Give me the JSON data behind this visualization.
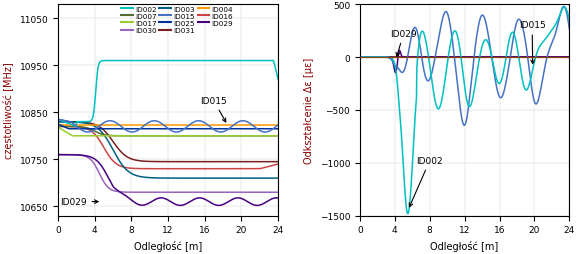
{
  "left_ylabel": "częstotliwość [MHz]",
  "left_xlabel": "Odległość [m]",
  "left_ylim": [
    10630,
    11080
  ],
  "left_xlim": [
    0,
    24
  ],
  "left_xticks": [
    0,
    4,
    8,
    12,
    16,
    20,
    24
  ],
  "left_yticks": [
    10650,
    10750,
    10850,
    10950,
    11050
  ],
  "right_ylabel": "Odkształcenie Δε [με]",
  "right_xlabel": "Odległość [m]",
  "right_ylim": [
    -1500,
    500
  ],
  "right_xlim": [
    0,
    24
  ],
  "right_xticks": [
    0,
    4,
    8,
    12,
    16,
    20,
    24
  ],
  "right_yticks": [
    -1500,
    -1000,
    -500,
    0,
    500
  ],
  "legend_entries": [
    {
      "label": "ID002",
      "color": "#00C0C0"
    },
    {
      "label": "ID007",
      "color": "#556B2F"
    },
    {
      "label": "ID017",
      "color": "#9ACD32"
    },
    {
      "label": "ID030",
      "color": "#9966BB"
    },
    {
      "label": "ID003",
      "color": "#006080"
    },
    {
      "label": "ID015",
      "color": "#4472C4"
    },
    {
      "label": "ID025",
      "color": "#003399"
    },
    {
      "label": "ID031",
      "color": "#7B2020"
    },
    {
      "label": "ID004",
      "color": "#FF9900"
    },
    {
      "label": "ID016",
      "color": "#CC4444"
    },
    {
      "label": "ID029",
      "color": "#4B0080"
    }
  ],
  "figsize": [
    5.81,
    2.55
  ],
  "dpi": 100
}
